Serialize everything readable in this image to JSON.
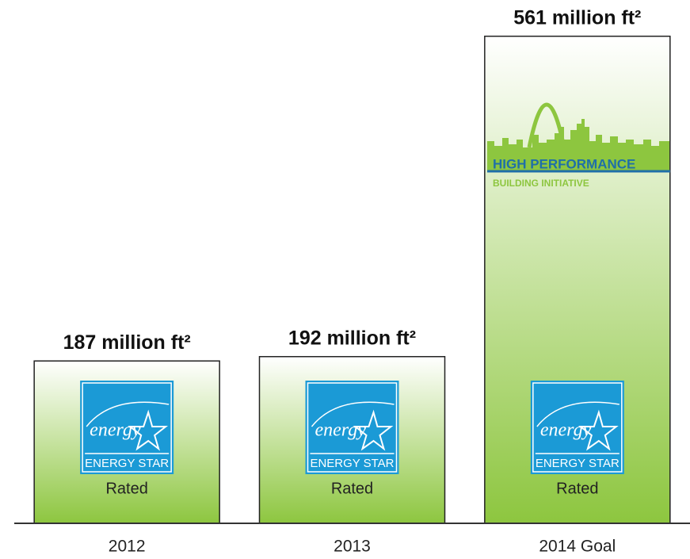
{
  "chart_data": {
    "type": "bar",
    "categories": [
      "2012",
      "2013",
      "2014 Goal"
    ],
    "values": [
      187,
      192,
      561
    ],
    "value_labels": [
      "187 million ft²",
      "192 million ft²",
      "561 million ft²"
    ],
    "color": "#8dc63f",
    "ylim": [
      0,
      600
    ],
    "logo_script": "energy",
    "logo_text": "ENERGY STAR",
    "logo_caption": "Rated",
    "initiative_logo": [
      "HIGH PERFORMANCE",
      "BUILDING INITIATIVE"
    ]
  }
}
